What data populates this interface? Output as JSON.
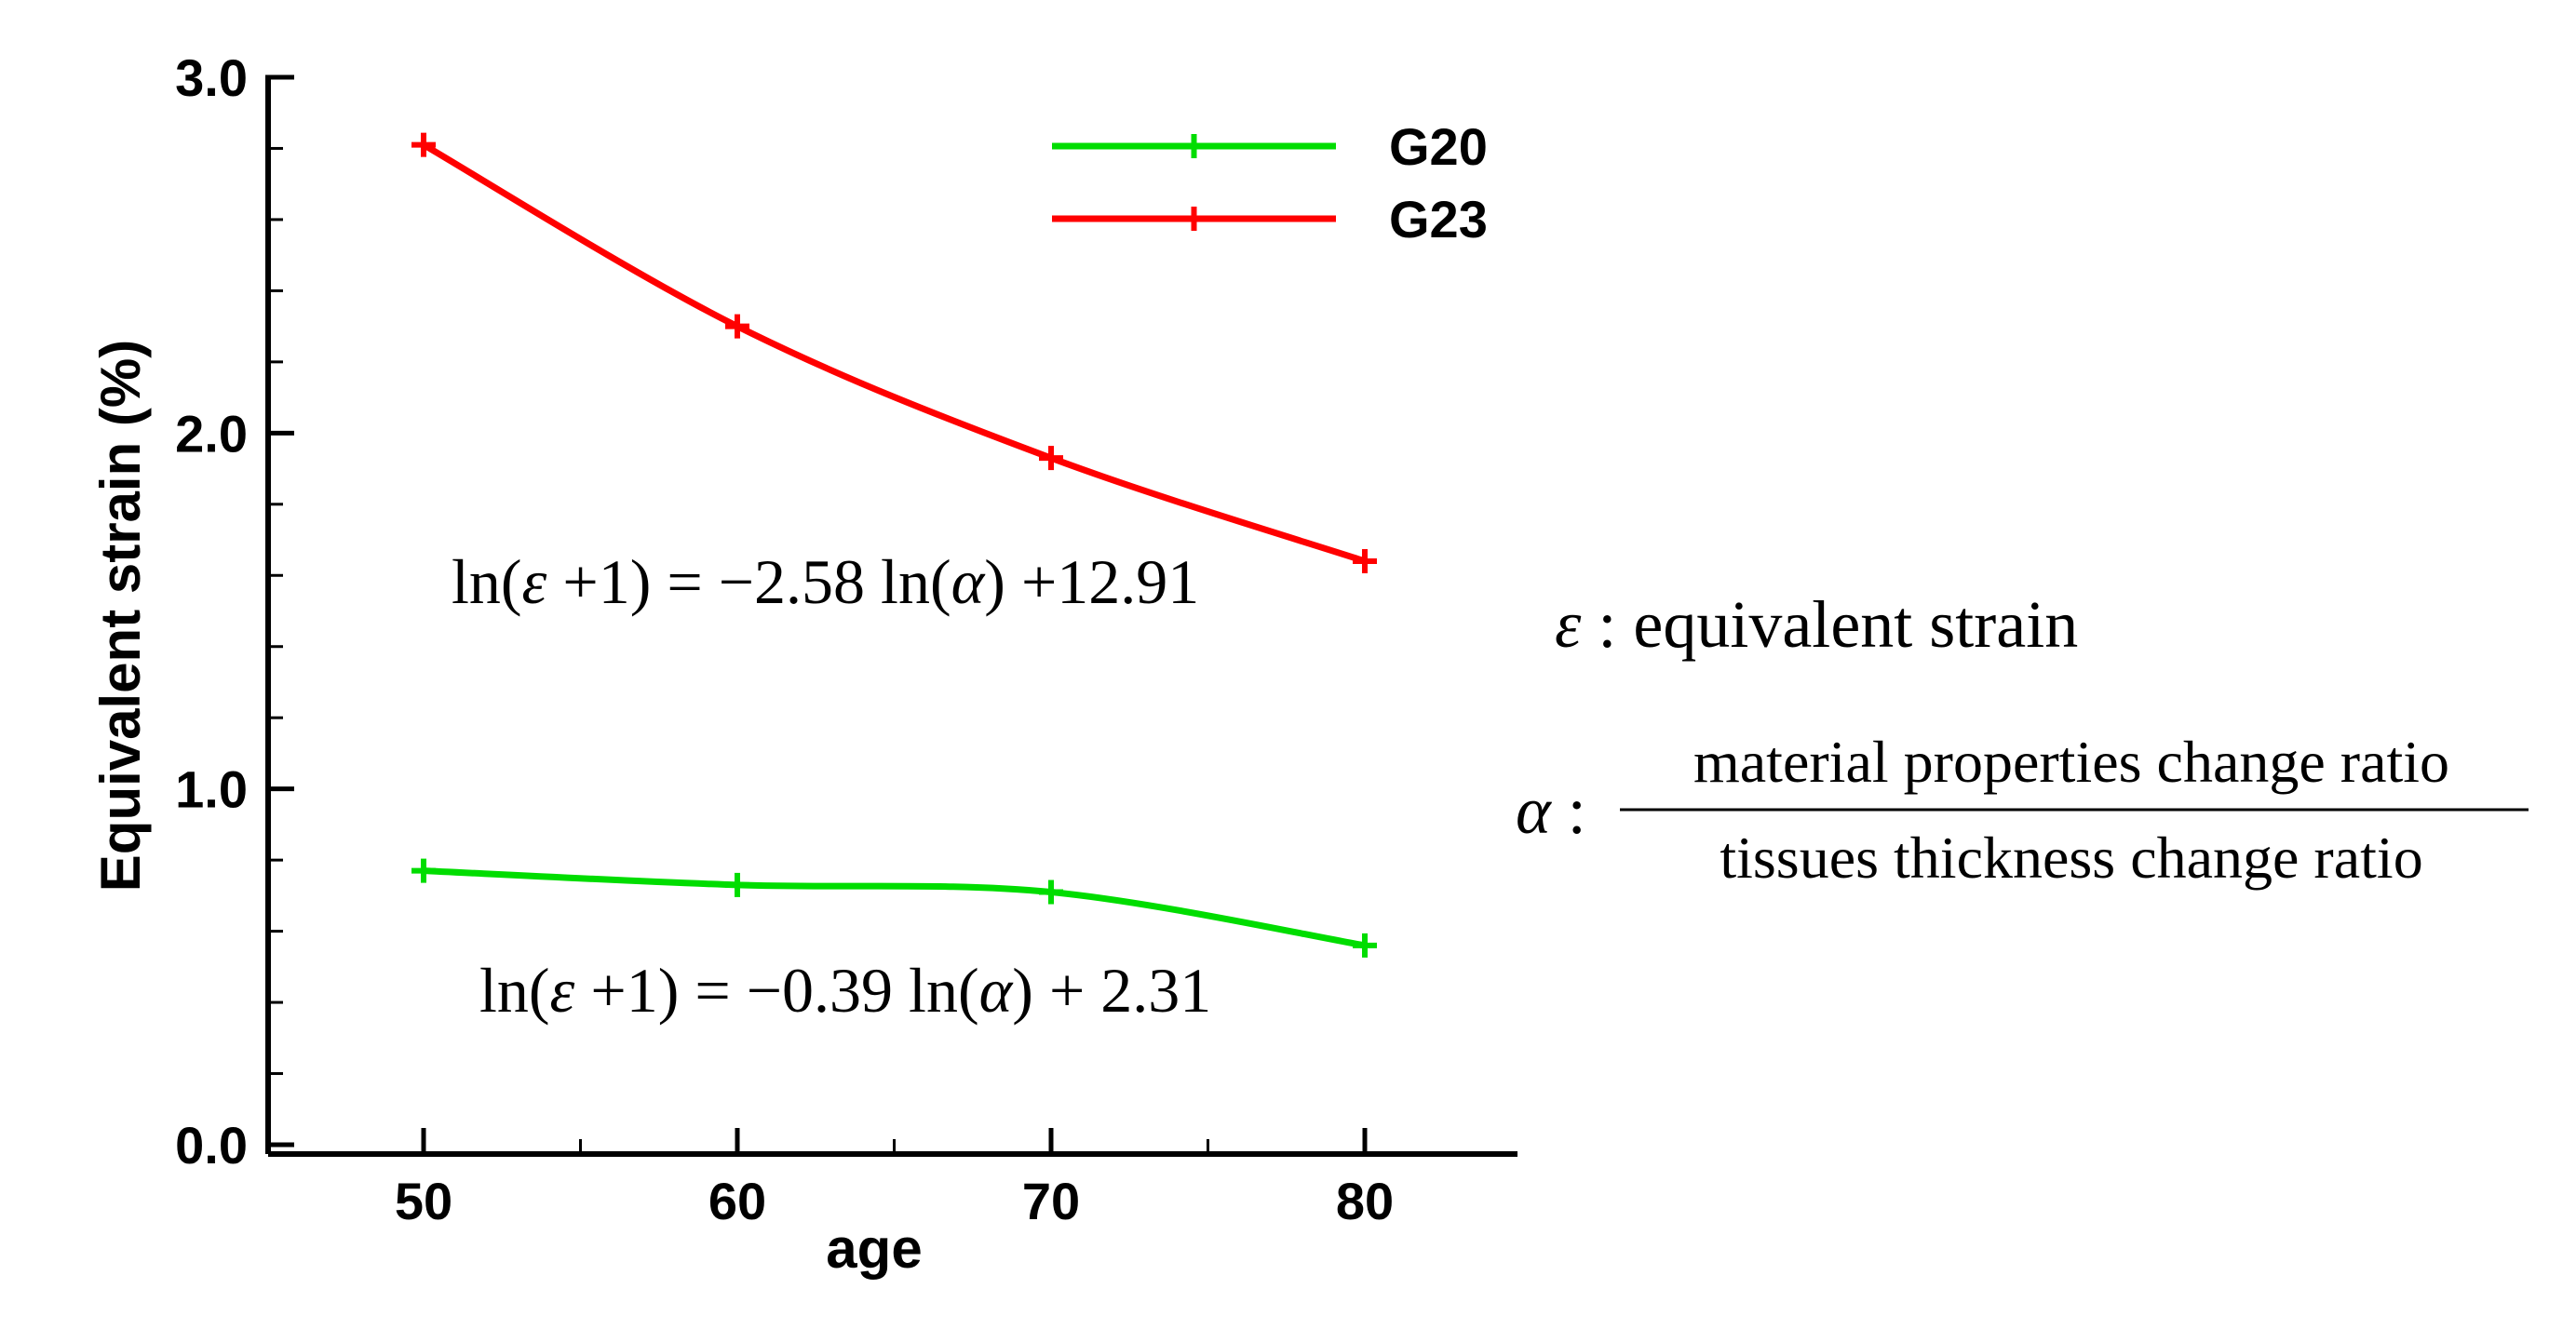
{
  "chart_data": {
    "type": "line",
    "xlabel": "age",
    "ylabel": "Equivalent strain (%)",
    "x": [
      50,
      60,
      70,
      80
    ],
    "xlim": [
      45,
      85
    ],
    "ylim": [
      0,
      3
    ],
    "x_ticks": [
      50,
      60,
      70,
      80
    ],
    "y_ticks": [
      0,
      1,
      2,
      3
    ],
    "y_tick_labels": [
      "0.0",
      "1.0",
      "2.0",
      "3.0"
    ],
    "grid": false,
    "legend_position": "top-right",
    "series": [
      {
        "name": "G20",
        "color": "#00dd00",
        "values": [
          0.77,
          0.73,
          0.71,
          0.56
        ]
      },
      {
        "name": "G23",
        "color": "#ff0000",
        "values": [
          2.81,
          2.3,
          1.93,
          1.64
        ]
      }
    ],
    "annotations": [
      {
        "series": "G23",
        "text": "ln(ε + 1) = −2.58 ln(α) + 12.91",
        "coef": "−2.58",
        "intercept": "+12.91"
      },
      {
        "series": "G20",
        "text": "ln(ε + 1) = −0.39 ln(α) + 2.31",
        "coef": "−0.39",
        "intercept": "+ 2.31"
      }
    ],
    "definitions": {
      "epsilon_symbol": "ε",
      "epsilon_label": "equivalent strain",
      "alpha_symbol": "α",
      "alpha_numerator": "material properties change ratio",
      "alpha_denominator": "tissues thickness change ratio"
    }
  }
}
